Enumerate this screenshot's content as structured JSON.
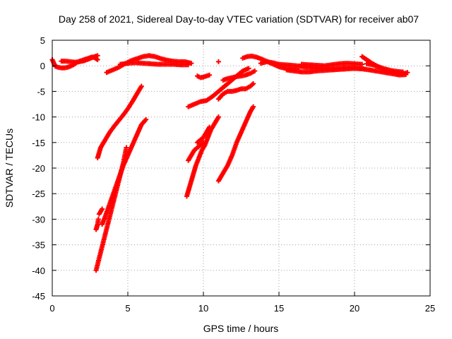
{
  "chart_data": {
    "type": "scatter",
    "title": "Day 258 of 2021, Sidereal Day-to-day VTEC variation (SDTVAR) for receiver ab07",
    "xlabel": "GPS time / hours",
    "ylabel": "SDTVAR / TECUs",
    "xlim": [
      0,
      25
    ],
    "ylim": [
      -45,
      5
    ],
    "xticks": [
      "0",
      "5",
      "10",
      "15",
      "20",
      "25"
    ],
    "yticks": [
      "5",
      "0",
      "-5",
      "-10",
      "-15",
      "-20",
      "-25",
      "-30",
      "-35",
      "-40",
      "-45"
    ],
    "grid": true,
    "legend": "none",
    "marker": "plus",
    "color": "#ff0000",
    "series": [
      {
        "x": [
          0.0,
          0.2,
          0.4,
          0.6,
          0.8,
          1.0,
          1.2,
          1.4,
          1.6,
          1.8,
          2.0,
          2.2,
          2.4,
          2.6,
          2.8,
          3.0
        ],
        "y": [
          1.2,
          -0.1,
          -0.3,
          -0.4,
          -0.4,
          -0.3,
          -0.1,
          0.2,
          0.6,
          0.9,
          1.1,
          1.3,
          1.5,
          1.7,
          1.6,
          1.2
        ]
      },
      {
        "x": [
          0.6,
          0.9,
          1.2,
          1.5,
          1.8,
          2.1,
          2.4,
          2.7,
          3.0
        ],
        "y": [
          0.9,
          0.9,
          0.8,
          0.7,
          0.8,
          1.0,
          1.3,
          1.7,
          2.0
        ]
      },
      {
        "x": [
          3.6,
          4.0,
          4.4,
          4.8,
          5.2,
          5.6,
          6.0,
          6.4,
          6.8,
          7.2,
          7.6,
          8.0,
          8.4,
          8.8,
          9.2
        ],
        "y": [
          -1.3,
          -0.8,
          -0.3,
          0.4,
          1.0,
          1.4,
          1.8,
          2.0,
          1.8,
          1.4,
          1.1,
          0.9,
          0.8,
          0.8,
          0.5
        ]
      },
      {
        "x": [
          4.5,
          5.0,
          5.5,
          6.0,
          6.5,
          7.0,
          7.5,
          8.0,
          8.5,
          9.0
        ],
        "y": [
          0.3,
          0.5,
          0.6,
          0.5,
          0.4,
          0.3,
          0.3,
          0.3,
          0.2,
          0.2
        ]
      },
      {
        "x": [
          3.0,
          3.2,
          3.5,
          3.8,
          4.1,
          4.4,
          4.7,
          5.0,
          5.3,
          5.6,
          5.9
        ],
        "y": [
          -18.0,
          -16.0,
          -14.5,
          -13.0,
          -11.8,
          -10.7,
          -9.6,
          -8.4,
          -7.0,
          -5.5,
          -4.0
        ]
      },
      {
        "x": [
          2.9,
          3.0,
          3.05
        ],
        "y": [
          -32.0,
          -31.0,
          -30.0
        ]
      },
      {
        "x": [
          3.3,
          3.5,
          3.8,
          4.1,
          4.4,
          4.7,
          5.0,
          5.3,
          5.6,
          5.9,
          6.2
        ],
        "y": [
          -31.0,
          -29.5,
          -27.0,
          -24.5,
          -22.0,
          -19.5,
          -17.5,
          -15.5,
          -13.5,
          -11.5,
          -10.5
        ]
      },
      {
        "x": [
          2.9,
          3.2,
          3.5,
          3.8,
          4.1,
          4.4,
          4.7,
          4.9
        ],
        "y": [
          -40.0,
          -36.5,
          -33.0,
          -29.5,
          -26.0,
          -22.5,
          -19.0,
          -16.0
        ]
      },
      {
        "x": [
          3.1,
          3.2,
          3.3
        ],
        "y": [
          -29.0,
          -28.5,
          -28.0
        ]
      },
      {
        "x": [
          9.0,
          9.4,
          9.8,
          10.2,
          10.6,
          11.0,
          11.4,
          11.8,
          12.2,
          12.6,
          13.0
        ],
        "y": [
          -8.0,
          -7.5,
          -7.0,
          -6.8,
          -6.0,
          -5.0,
          -4.0,
          -3.0,
          -2.0,
          -1.0,
          -0.5
        ]
      },
      {
        "x": [
          8.9,
          9.1,
          9.3,
          9.5,
          9.7,
          9.9,
          10.1,
          10.3,
          10.5,
          10.7,
          10.9,
          11.0
        ],
        "y": [
          -25.5,
          -23.5,
          -21.5,
          -19.5,
          -18.0,
          -16.5,
          -15.5,
          -14.0,
          -12.5,
          -11.5,
          -10.5,
          -10.0
        ]
      },
      {
        "x": [
          9.0,
          9.2,
          9.4,
          9.6,
          9.8,
          10.0
        ],
        "y": [
          -18.5,
          -17.5,
          -16.5,
          -16.0,
          -15.5,
          -15.0
        ]
      },
      {
        "x": [
          9.6,
          9.8,
          10.0,
          10.2,
          10.4
        ],
        "y": [
          -15.0,
          -14.5,
          -14.0,
          -13.0,
          -12.0
        ]
      },
      {
        "x": [
          11.0,
          11.3,
          11.6,
          11.9,
          12.2,
          12.5,
          12.8,
          13.1,
          13.3
        ],
        "y": [
          -22.5,
          -21.0,
          -19.5,
          -17.5,
          -15.0,
          -13.0,
          -11.0,
          -9.0,
          -8.0
        ]
      },
      {
        "x": [
          11.0,
          11.3,
          11.6,
          11.9,
          12.2,
          12.5,
          12.8,
          13.1,
          13.3
        ],
        "y": [
          -6.5,
          -5.5,
          -5.0,
          -5.0,
          -4.8,
          -4.5,
          -4.5,
          -4.0,
          -3.5
        ]
      },
      {
        "x": [
          11.3,
          11.6,
          11.9,
          12.2,
          12.5,
          12.8,
          13.1,
          13.4
        ],
        "y": [
          -2.8,
          -2.5,
          -2.3,
          -2.1,
          -2.0,
          -1.8,
          -1.5,
          -1.0
        ]
      },
      {
        "x": [
          9.6,
          9.8,
          10.0,
          10.2,
          10.4
        ],
        "y": [
          -2.0,
          -2.3,
          -2.2,
          -2.0,
          -1.8
        ]
      },
      {
        "x": [
          11.0
        ],
        "y": [
          0.8
        ]
      },
      {
        "x": [
          12.6,
          12.9,
          13.2,
          13.5,
          13.8,
          14.1,
          14.4,
          14.7,
          15.0,
          15.3,
          15.6,
          15.9,
          16.2
        ],
        "y": [
          1.5,
          1.8,
          1.9,
          1.7,
          1.4,
          1.0,
          0.6,
          0.2,
          -0.2,
          -0.4,
          -0.5,
          -0.6,
          -0.6
        ]
      },
      {
        "x": [
          13.8,
          14.2,
          14.6,
          15.0,
          15.4,
          15.8,
          16.2,
          16.6,
          17.0,
          17.4,
          17.8,
          18.2,
          18.6,
          19.0,
          19.4,
          19.8,
          20.2,
          20.6
        ],
        "y": [
          0.5,
          0.8,
          0.6,
          0.3,
          0.2,
          0.1,
          0.0,
          -0.2,
          -0.3,
          -0.4,
          -0.5,
          -0.6,
          -0.6,
          -0.5,
          -0.4,
          -0.4,
          -0.5,
          -0.6
        ]
      },
      {
        "x": [
          15.5,
          16.0,
          16.5,
          17.0,
          17.5,
          18.0,
          18.5,
          19.0,
          19.5,
          20.0,
          20.5,
          21.0
        ],
        "y": [
          -0.8,
          -1.0,
          -1.2,
          -1.2,
          -1.0,
          -0.9,
          -0.8,
          -0.7,
          -0.6,
          -0.5,
          -0.6,
          -0.8
        ]
      },
      {
        "x": [
          16.5,
          17.0,
          17.5,
          18.0,
          18.5,
          19.0,
          19.5,
          20.0,
          20.5
        ],
        "y": [
          0.3,
          0.2,
          0.1,
          0.0,
          0.2,
          0.4,
          0.5,
          0.4,
          0.3
        ]
      },
      {
        "x": [
          20.5,
          20.8,
          21.1,
          21.4,
          21.7,
          22.0,
          22.3,
          22.6,
          22.9,
          23.2,
          23.5
        ],
        "y": [
          1.8,
          1.2,
          0.6,
          0.1,
          -0.4,
          -0.8,
          -1.1,
          -1.3,
          -1.5,
          -1.6,
          -1.3
        ]
      },
      {
        "x": [
          21.0,
          21.4,
          21.8,
          22.2,
          22.6,
          23.0,
          23.4
        ],
        "y": [
          -0.8,
          -1.0,
          -1.2,
          -1.4,
          -1.6,
          -1.8,
          -1.7
        ]
      },
      {
        "x": [
          20.8,
          21.2,
          21.6,
          22.0,
          22.4,
          22.8,
          23.2
        ],
        "y": [
          0.4,
          0.2,
          -0.2,
          -0.6,
          -0.9,
          -1.1,
          -1.2
        ]
      }
    ]
  }
}
